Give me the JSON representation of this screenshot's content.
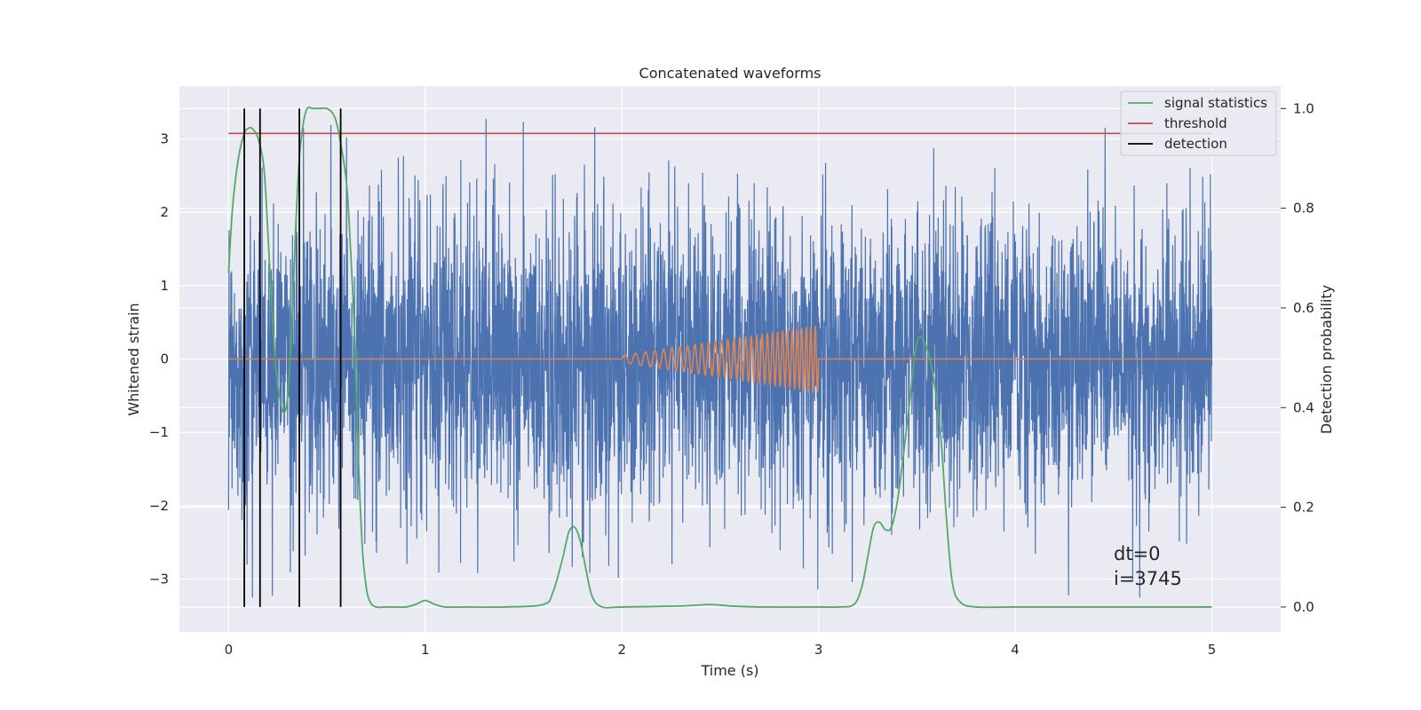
{
  "chart_data": {
    "type": "line",
    "title": "Concatenated waveforms",
    "xlabel": "Time (s)",
    "ylabel_left": "Whitened strain",
    "ylabel_right": "Detection probability",
    "xlim": [
      -0.25,
      5.35
    ],
    "ylim_left": [
      -3.72,
      3.72
    ],
    "ylim_right": [
      -0.05,
      1.045
    ],
    "grid": true,
    "legend_position": "top-right",
    "x_ticks": [
      0,
      1,
      2,
      3,
      4,
      5
    ],
    "y_ticks_left": [
      -3,
      -2,
      -1,
      0,
      1,
      2,
      3
    ],
    "y_ticks_right": [
      0.0,
      0.2,
      0.4,
      0.6,
      0.8,
      1.0
    ],
    "x_tick_labels": [
      "0",
      "1",
      "2",
      "3",
      "4",
      "5"
    ],
    "y_tick_labels_left": [
      "−3",
      "−2",
      "−1",
      "0",
      "1",
      "2",
      "3"
    ],
    "y_tick_labels_right": [
      "0.0",
      "0.2",
      "0.4",
      "0.6",
      "0.8",
      "1.0"
    ],
    "colors": {
      "strain": "#4c72b0",
      "waveform": "#dd8452",
      "signal": "#55a868",
      "threshold": "#c44e52",
      "detection": "#000000",
      "background": "#eaeaf2",
      "grid": "#ffffff"
    },
    "series": [
      {
        "key": "signal",
        "name": "signal statistics",
        "axis": "right",
        "x": [
          0.0,
          0.02,
          0.05,
          0.08,
          0.1,
          0.12,
          0.15,
          0.18,
          0.2,
          0.22,
          0.24,
          0.26,
          0.28,
          0.3,
          0.32,
          0.34,
          0.36,
          0.38,
          0.4,
          0.43,
          0.46,
          0.5,
          0.53,
          0.55,
          0.57,
          0.6,
          0.62,
          0.64,
          0.66,
          0.68,
          0.7,
          0.72,
          0.75,
          0.8,
          0.85,
          0.9,
          0.95,
          1.0,
          1.05,
          1.1,
          1.2,
          1.4,
          1.6,
          1.65,
          1.7,
          1.73,
          1.76,
          1.79,
          1.82,
          1.85,
          1.9,
          2.0,
          2.3,
          2.45,
          2.55,
          2.7,
          3.0,
          3.1,
          3.18,
          3.22,
          3.25,
          3.28,
          3.31,
          3.34,
          3.37,
          3.4,
          3.43,
          3.46,
          3.5,
          3.54,
          3.58,
          3.62,
          3.65,
          3.68,
          3.72,
          3.8,
          4.0,
          4.5,
          5.0
        ],
        "y": [
          0.67,
          0.8,
          0.9,
          0.95,
          0.96,
          0.96,
          0.94,
          0.88,
          0.75,
          0.6,
          0.48,
          0.42,
          0.39,
          0.42,
          0.55,
          0.75,
          0.9,
          0.97,
          1.0,
          1.0,
          1.0,
          1.0,
          0.99,
          0.97,
          0.93,
          0.85,
          0.72,
          0.55,
          0.3,
          0.12,
          0.04,
          0.01,
          0.0,
          0.0,
          0.0,
          0.0,
          0.005,
          0.013,
          0.005,
          0.0,
          0.0,
          0.0,
          0.005,
          0.03,
          0.1,
          0.15,
          0.16,
          0.13,
          0.07,
          0.02,
          0.0,
          0.0,
          0.002,
          0.005,
          0.002,
          0.0,
          0.0,
          0.0,
          0.005,
          0.04,
          0.1,
          0.16,
          0.17,
          0.155,
          0.16,
          0.21,
          0.3,
          0.4,
          0.53,
          0.53,
          0.47,
          0.35,
          0.18,
          0.05,
          0.01,
          0.0,
          0.0,
          0.0,
          0.0
        ]
      },
      {
        "key": "threshold",
        "name": "threshold",
        "axis": "right",
        "x": [
          0,
          5
        ],
        "y": [
          0.95,
          0.95
        ]
      },
      {
        "key": "detection",
        "name": "detection",
        "axis": "right",
        "x": [
          0.08,
          0.16,
          0.36,
          0.57
        ],
        "y_range": [
          0.0,
          1.0
        ]
      },
      {
        "key": "strain",
        "name": "",
        "axis": "left",
        "x_range": [
          0,
          5
        ],
        "amplitude_std": 1.0,
        "peak": 3.4,
        "trough": -3.35
      },
      {
        "key": "waveform",
        "name": "",
        "axis": "left",
        "x_range": [
          2.0,
          3.0
        ],
        "amplitude_start": 0.05,
        "amplitude_end": 0.45,
        "cycles": 31
      }
    ],
    "annotations": [
      "dt=0",
      "i=3745"
    ]
  }
}
